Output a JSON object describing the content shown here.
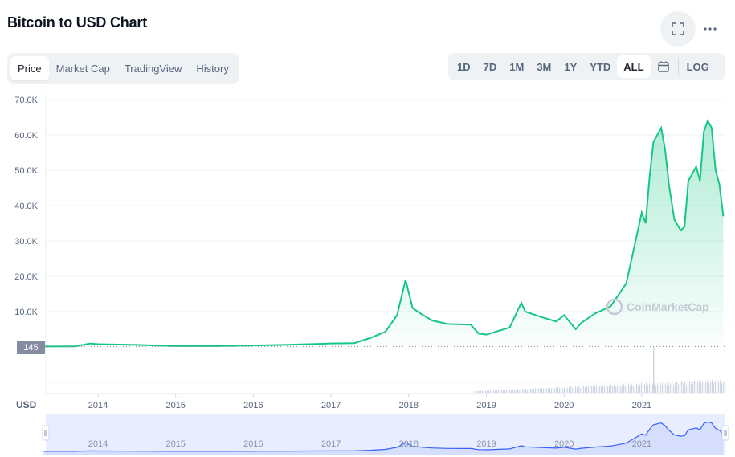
{
  "page": {
    "title": "Bitcoin to USD Chart"
  },
  "toolbar": {
    "tabs": [
      {
        "label": "Price",
        "active": true
      },
      {
        "label": "Market Cap",
        "active": false
      },
      {
        "label": "TradingView",
        "active": false
      },
      {
        "label": "History",
        "active": false
      }
    ],
    "ranges": [
      {
        "label": "1D",
        "active": false
      },
      {
        "label": "7D",
        "active": false
      },
      {
        "label": "1M",
        "active": false
      },
      {
        "label": "3M",
        "active": false
      },
      {
        "label": "1Y",
        "active": false
      },
      {
        "label": "YTD",
        "active": false
      },
      {
        "label": "ALL",
        "active": true
      }
    ],
    "log_label": "LOG",
    "icons": {
      "fullscreen": "fullscreen-icon",
      "more": "more-dots-icon",
      "calendar": "calendar-icon"
    }
  },
  "chart_data": {
    "type": "area",
    "currency_label": "USD",
    "current_price_label": "145",
    "watermark": "CoinMarketCap",
    "y_ticks": [
      "70.0K",
      "60.0K",
      "50.0K",
      "40.0K",
      "30.0K",
      "20.0K",
      "10.0K"
    ],
    "ylim": [
      0,
      70000
    ],
    "x_ticks": [
      "2014",
      "2015",
      "2016",
      "2017",
      "2018",
      "2019",
      "2020",
      "2021"
    ],
    "colors": {
      "line": "#16c784",
      "fill_top": "#16c784",
      "navigator_line": "#3861fb",
      "navigator_fill": "#e8edff"
    },
    "x": [
      2013.3,
      2013.7,
      2013.9,
      2014.0,
      2014.5,
      2015.0,
      2015.5,
      2016.0,
      2016.5,
      2017.0,
      2017.3,
      2017.5,
      2017.7,
      2017.85,
      2017.96,
      2018.05,
      2018.15,
      2018.3,
      2018.5,
      2018.8,
      2018.9,
      2019.0,
      2019.3,
      2019.45,
      2019.5,
      2019.7,
      2019.9,
      2020.0,
      2020.15,
      2020.22,
      2020.4,
      2020.6,
      2020.8,
      2020.92,
      2021.0,
      2021.05,
      2021.1,
      2021.15,
      2021.25,
      2021.3,
      2021.35,
      2021.42,
      2021.5,
      2021.55,
      2021.6,
      2021.7,
      2021.75,
      2021.8,
      2021.85,
      2021.9,
      2021.95,
      2022.0,
      2022.05
    ],
    "values": [
      145,
      150,
      1000,
      800,
      600,
      250,
      250,
      430,
      650,
      1000,
      1100,
      2500,
      4300,
      9000,
      19000,
      11000,
      9500,
      7500,
      6500,
      6300,
      3800,
      3500,
      5500,
      12500,
      10000,
      8500,
      7200,
      9000,
      5000,
      6800,
      9500,
      11500,
      18000,
      30000,
      38000,
      35000,
      48000,
      58000,
      62000,
      56000,
      46000,
      36000,
      33000,
      34000,
      47000,
      51000,
      47000,
      61000,
      64000,
      62000,
      50000,
      46000,
      37000
    ]
  }
}
